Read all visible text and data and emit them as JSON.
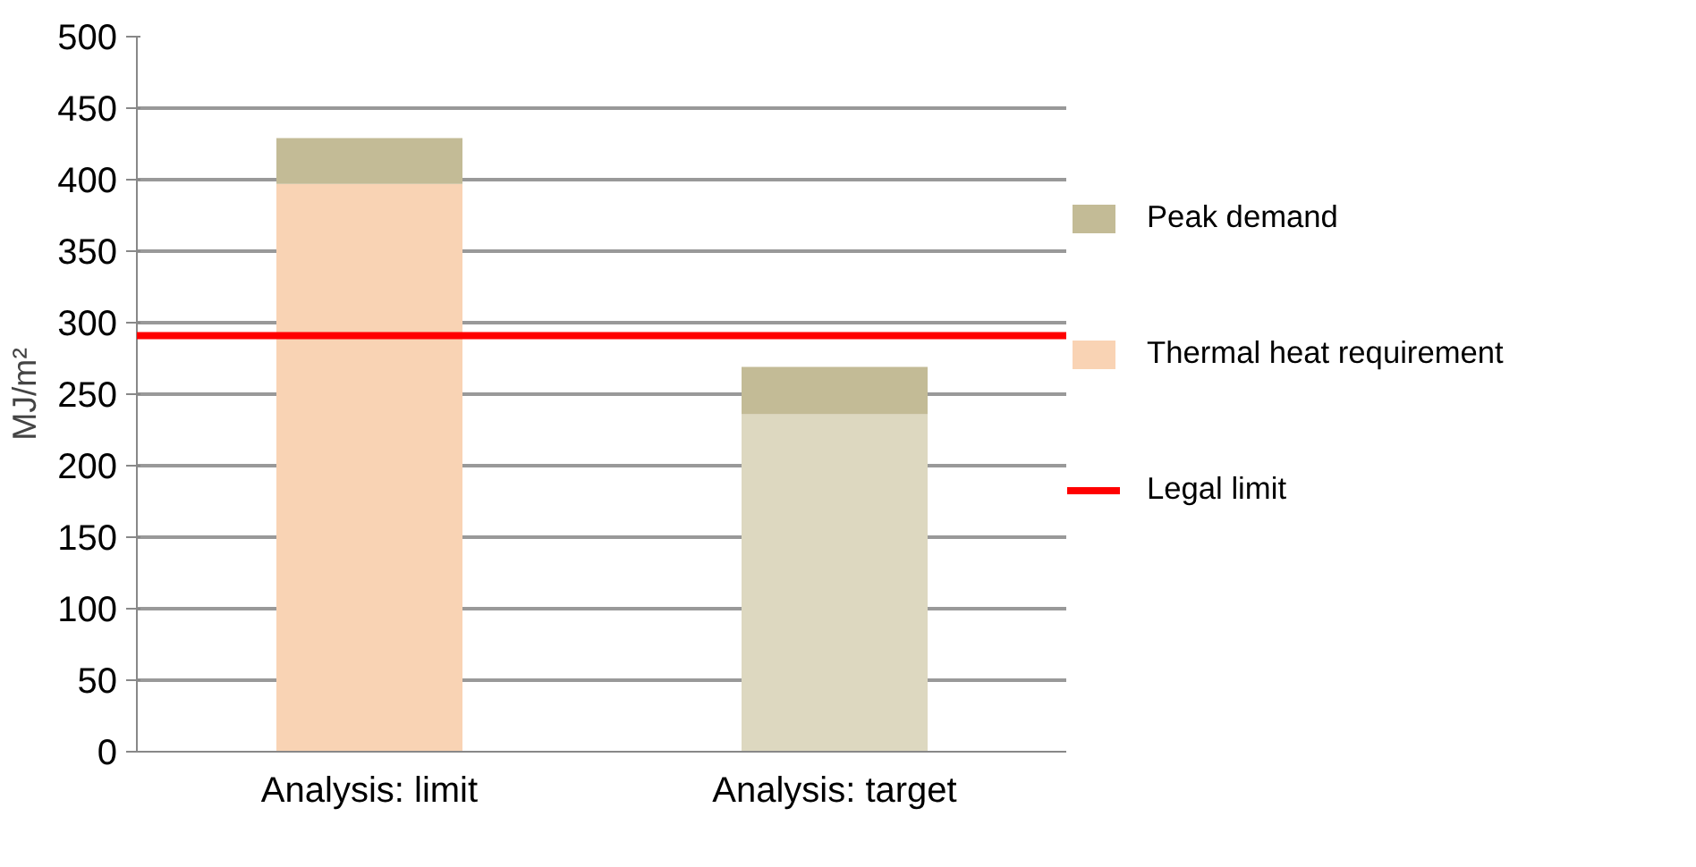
{
  "chart_data": {
    "type": "bar",
    "stacked": true,
    "ylabel": "MJ/m²",
    "categories": [
      "Analysis: limit",
      "Analysis: target"
    ],
    "series": [
      {
        "name": "Thermal heat requirement",
        "color": "#f9d3b4",
        "colors": [
          "#f9d3b4",
          "#ddd8c0"
        ],
        "values": [
          397,
          236
        ]
      },
      {
        "name": "Peak demand",
        "color": "#c3bb96",
        "values": [
          32,
          33
        ]
      }
    ],
    "ref_lines": [
      {
        "axis": "y",
        "value": 291,
        "label": "Legal limit",
        "color": "#ff0000",
        "line_style": "solid"
      }
    ],
    "ylim": [
      0,
      500
    ],
    "yticks": [
      0,
      50,
      100,
      150,
      200,
      250,
      300,
      350,
      400,
      450,
      500
    ],
    "grid": "y",
    "legend": "right"
  }
}
